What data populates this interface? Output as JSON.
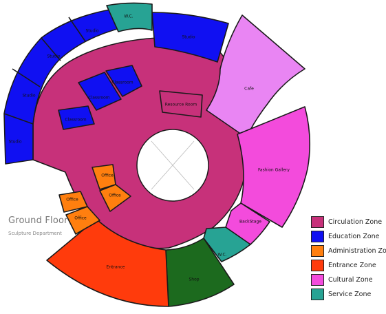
{
  "title": "Ground Floor",
  "subtitle": "Sculpture Department",
  "colors": {
    "circulation": "#c7317a",
    "education": "#1010f2",
    "administration": "#ff7f0f",
    "entrance": "#ff3b0c",
    "cultural": "#f34bdc",
    "cultural_light": "#e985f3",
    "service": "#27a394",
    "shop": "#1c6a1e",
    "atrium": "#ffffff"
  },
  "legend": [
    {
      "label": "Circulation Zone",
      "color": "#c7317a"
    },
    {
      "label": "Education Zone",
      "color": "#1010f2"
    },
    {
      "label": "Administration Zone",
      "color": "#ff7f0f"
    },
    {
      "label": "Entrance Zone",
      "color": "#ff3b0c"
    },
    {
      "label": "Cultural Zone",
      "color": "#f34bdc"
    },
    {
      "label": "Service Zone",
      "color": "#27a394"
    }
  ],
  "rooms": {
    "studio_1": "Studio",
    "studio_2": "Studio",
    "studio_3": "Studio",
    "studio_4": "Studio",
    "studio_5": "Studio",
    "wc_top": "W.C.",
    "wc_bottom": "W.C.",
    "cafe": "Cafe",
    "fashion_gallery": "Fashion Gallery",
    "backstage": "BackStage",
    "shop": "Shop",
    "entrance": "Entrance",
    "office_1": "Office",
    "office_2": "Office",
    "office_3": "Office",
    "office_4": "Office",
    "classroom_1": "Classroom",
    "classroom_2": "Classroom",
    "classroom_3": "Classroom",
    "resource_room": "Resource Room"
  }
}
